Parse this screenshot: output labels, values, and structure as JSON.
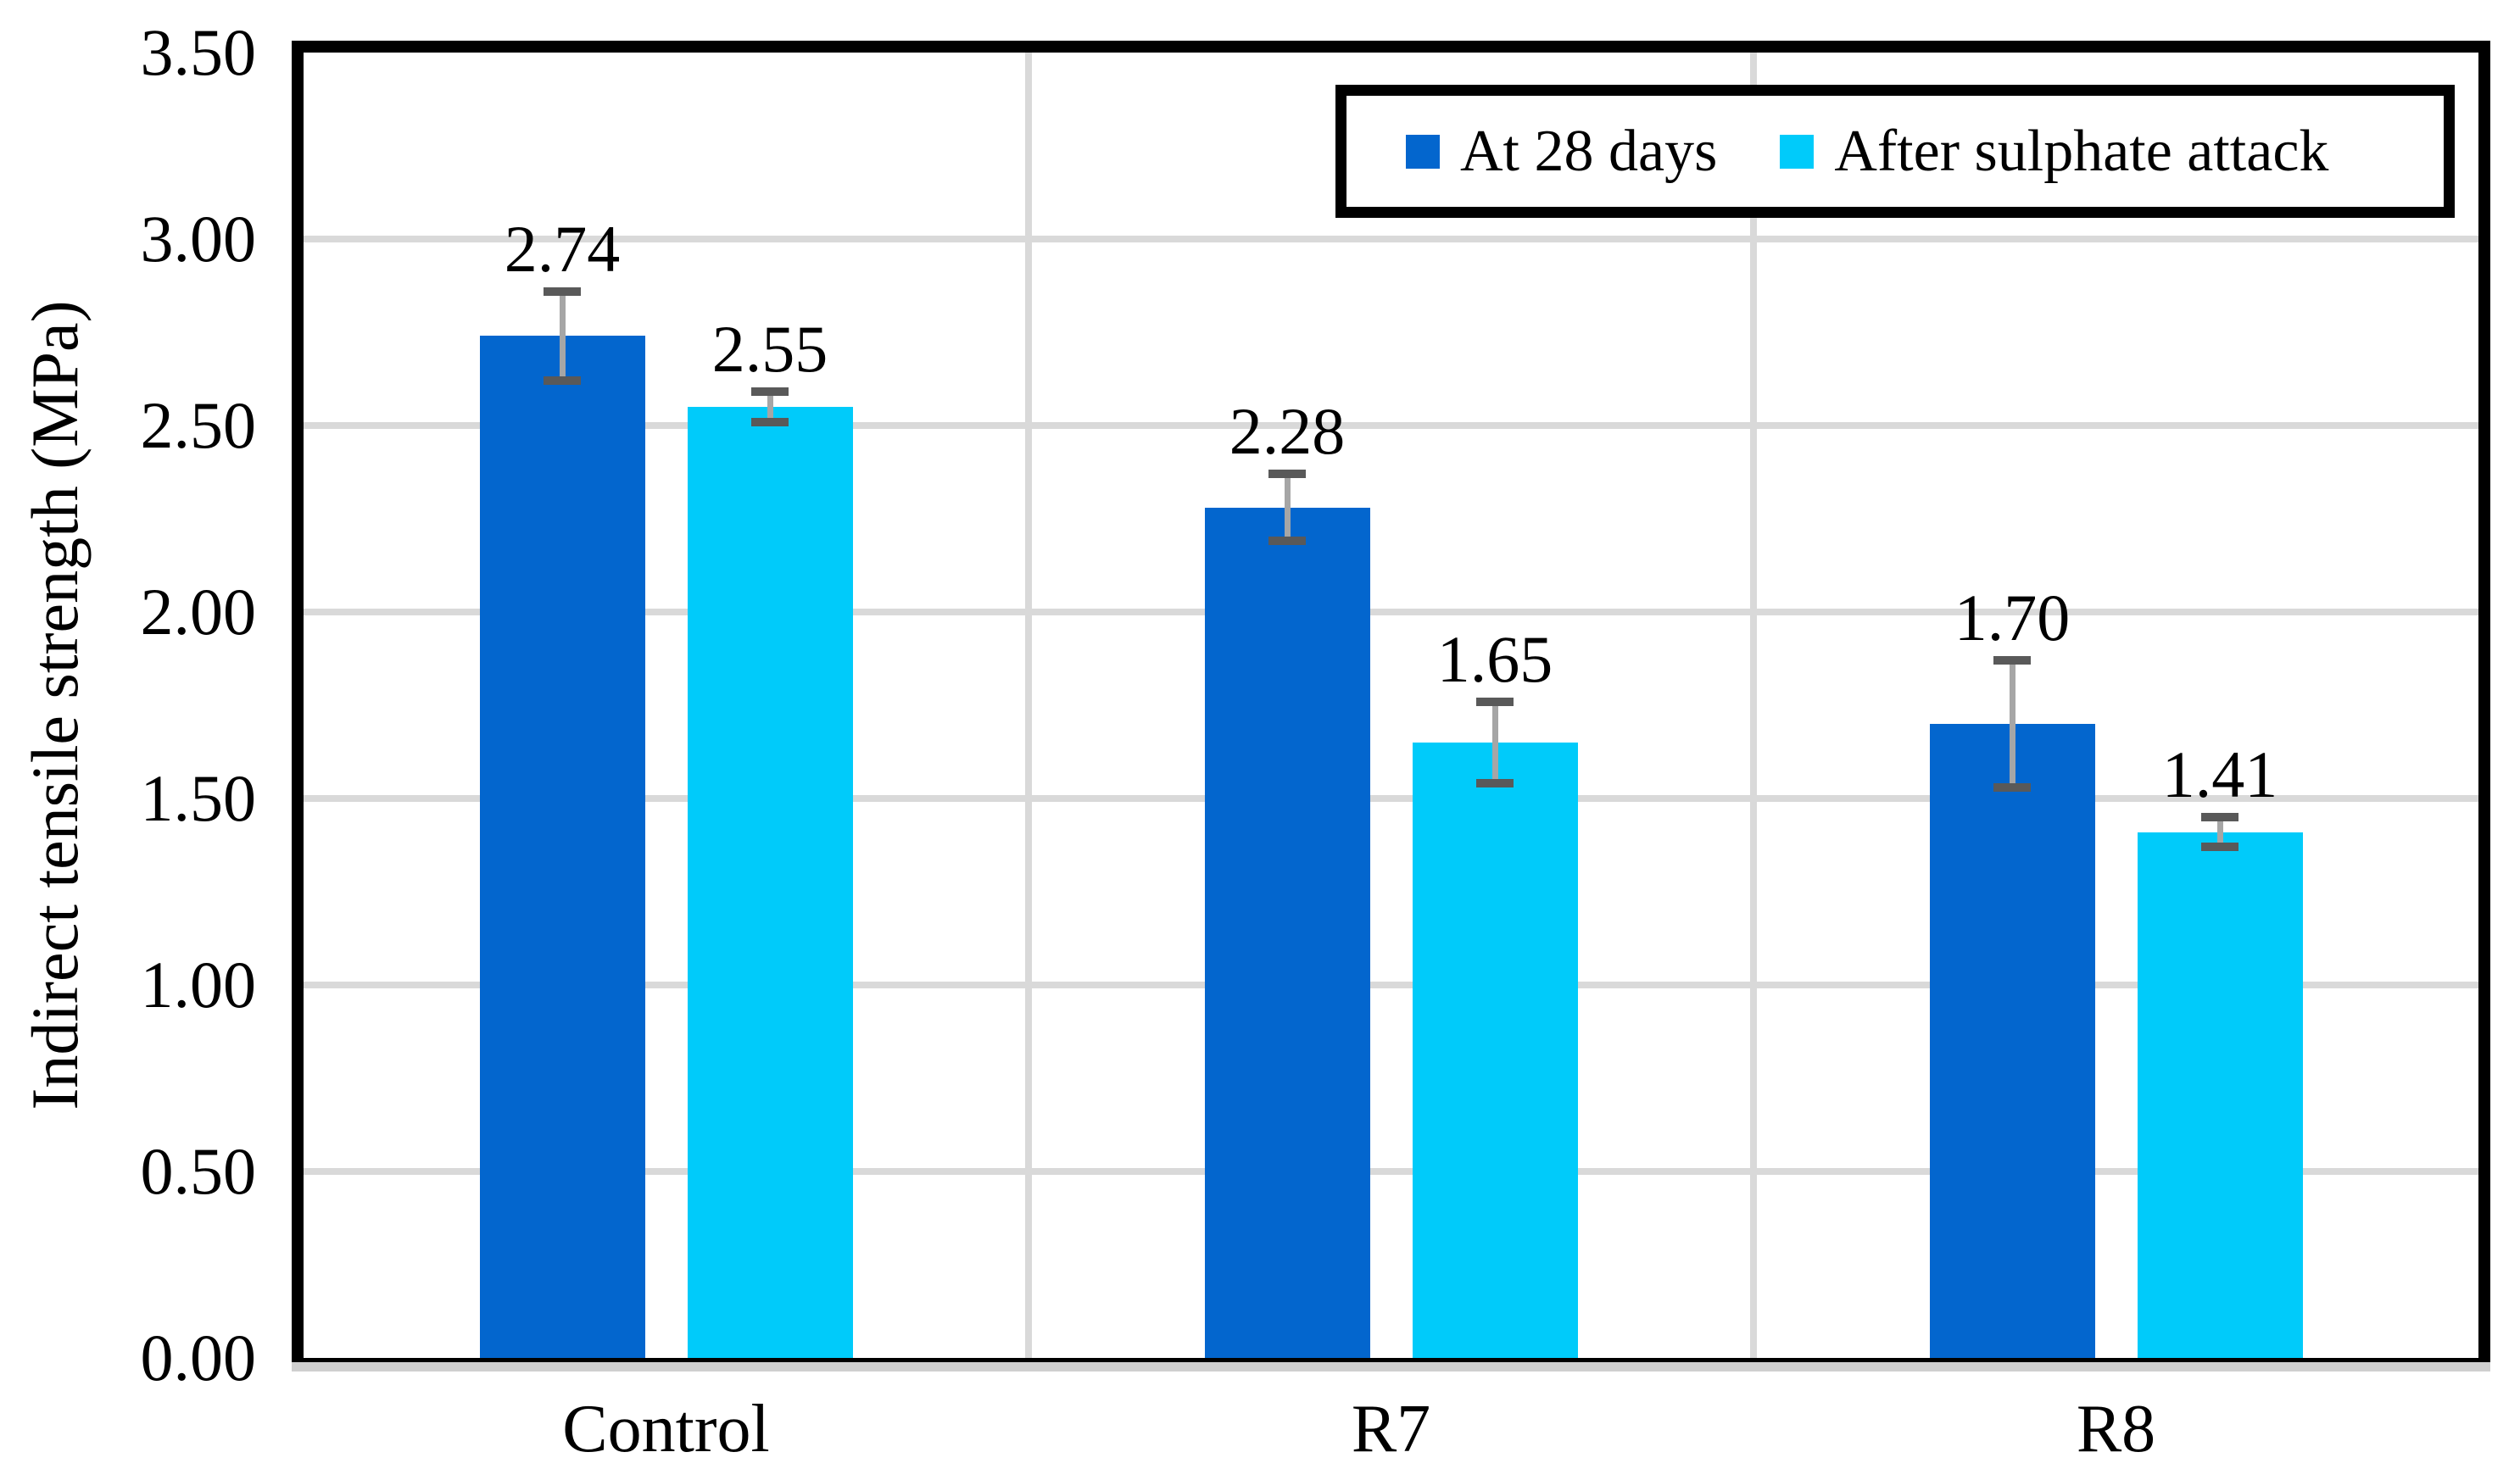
{
  "chart_data": {
    "type": "bar",
    "title": "",
    "ylabel": "Indirect tensile strength (MPa)",
    "xlabel": "",
    "categories": [
      "Control",
      "R7",
      "R8"
    ],
    "series": [
      {
        "name": "At 28 days",
        "color": "#0366CE",
        "values": [
          2.74,
          2.28,
          1.7
        ],
        "labels": [
          "2.74",
          "2.28",
          "1.70"
        ],
        "errors": [
          0.12,
          0.09,
          0.17
        ]
      },
      {
        "name": "After sulphate attack",
        "color": "#00CBFA",
        "values": [
          2.55,
          1.65,
          1.41
        ],
        "labels": [
          "2.55",
          "1.65",
          "1.41"
        ],
        "errors": [
          0.04,
          0.11,
          0.04
        ]
      }
    ],
    "ylim": [
      0,
      3.5
    ],
    "ytick_step": 0.5,
    "yticks": [
      "0.00",
      "0.50",
      "1.00",
      "1.50",
      "2.00",
      "2.50",
      "3.00",
      "3.50"
    ],
    "grid": true,
    "legend_position": "top-right",
    "colors": {
      "gridline": "#D9D9D9",
      "axis_line": "#CFCFCF",
      "error_line": "#A6A6A6",
      "error_cap": "#595959",
      "plot_border": "#000000",
      "text": "#000000"
    }
  }
}
